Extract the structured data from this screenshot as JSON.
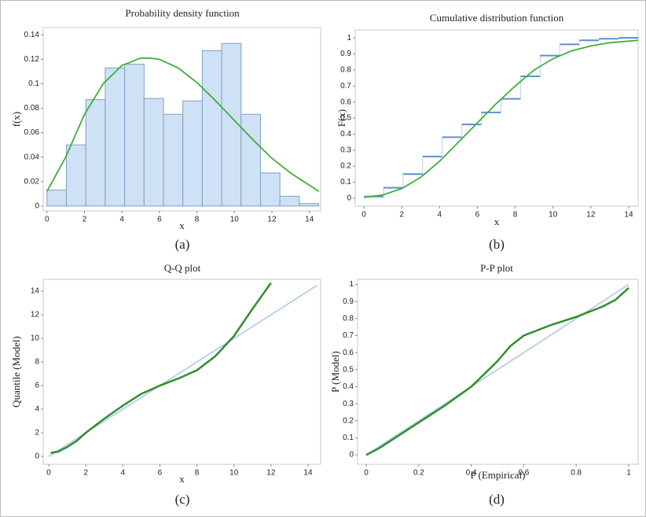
{
  "chart_data": [
    {
      "type": "histogram",
      "title": "Probability density function",
      "x_label": "x",
      "y_label": "f(x)",
      "caption": "(a)",
      "xlim": [
        -0.2,
        14.6
      ],
      "ylim": [
        -0.004,
        0.146
      ],
      "xticks": [
        0,
        2,
        4,
        6,
        8,
        10,
        12,
        14
      ],
      "yticks": [
        0,
        0.02,
        0.04,
        0.06,
        0.08,
        0.1,
        0.12,
        0.14
      ],
      "series": [
        {
          "style": "bars",
          "color": "#cfe2f5",
          "edge_color": "#7f9fc2",
          "bins": [
            0,
            1.036,
            2.071,
            3.107,
            4.143,
            5.179,
            6.214,
            7.25,
            8.286,
            9.321,
            10.357,
            11.393,
            12.429,
            13.464,
            14.5
          ],
          "values": [
            0.013,
            0.05,
            0.087,
            0.113,
            0.116,
            0.088,
            0.075,
            0.086,
            0.127,
            0.133,
            0.075,
            0.027,
            0.008,
            0.002
          ]
        },
        {
          "style": "line",
          "color": "#3fae3f",
          "x": [
            0,
            1,
            2,
            3,
            4,
            5,
            5.5,
            6,
            7,
            8,
            9,
            10,
            11,
            12,
            13,
            14,
            14.5
          ],
          "values": [
            0.012,
            0.04,
            0.075,
            0.1,
            0.115,
            0.121,
            0.121,
            0.12,
            0.113,
            0.101,
            0.086,
            0.07,
            0.054,
            0.039,
            0.027,
            0.017,
            0.012
          ]
        }
      ]
    },
    {
      "type": "step",
      "title": "Cumulative distribution function",
      "x_label": "x",
      "y_label": "F(x)",
      "caption": "(b)",
      "xlim": [
        -0.46,
        14.5
      ],
      "ylim": [
        -0.05,
        1.05
      ],
      "xticks": [
        0,
        2,
        4,
        6,
        8,
        10,
        12,
        14
      ],
      "yticks": [
        0,
        0.1,
        0.2,
        0.3,
        0.4,
        0.5,
        0.6,
        0.7,
        0.8,
        0.9,
        1
      ],
      "series": [
        {
          "style": "steps",
          "color": "#5b8fd6",
          "riser_color": "#b9cfee",
          "bins": [
            0,
            1.036,
            2.071,
            3.107,
            4.143,
            5.179,
            6.214,
            7.25,
            8.286,
            9.321,
            10.357,
            11.393,
            12.429,
            13.464,
            14.5
          ],
          "values": [
            0.01,
            0.065,
            0.15,
            0.26,
            0.38,
            0.46,
            0.535,
            0.62,
            0.76,
            0.89,
            0.96,
            0.985,
            0.995,
            1
          ]
        },
        {
          "style": "line",
          "color": "#3fae3f",
          "x": [
            0,
            1,
            2,
            3,
            4,
            5,
            6,
            7,
            8,
            9,
            10,
            11,
            12,
            13,
            14,
            14.5
          ],
          "values": [
            0.005,
            0.02,
            0.06,
            0.13,
            0.23,
            0.35,
            0.47,
            0.59,
            0.7,
            0.8,
            0.87,
            0.92,
            0.95,
            0.97,
            0.98,
            0.985
          ]
        }
      ]
    },
    {
      "type": "line",
      "title": "Q-Q plot",
      "x_label": "x",
      "y_label": "Quantile (Model)",
      "caption": "(c)",
      "xlim": [
        -0.3,
        14.68
      ],
      "ylim": [
        -0.67,
        15
      ],
      "xticks": [
        0,
        2,
        4,
        6,
        8,
        10,
        12,
        14
      ],
      "yticks": [
        0,
        2,
        4,
        6,
        8,
        10,
        12,
        14
      ],
      "series": [
        {
          "style": "line",
          "color": "#b8cdeb",
          "x": [
            0,
            14.5
          ],
          "values": [
            0,
            14.5
          ]
        },
        {
          "style": "line",
          "color": "#2f8f2f",
          "x": [
            0.1,
            0.5,
            1,
            1.5,
            2,
            3,
            4,
            5,
            6,
            7,
            8,
            9,
            10,
            11,
            12
          ],
          "values": [
            0.3,
            0.4,
            0.8,
            1.3,
            2,
            3.2,
            4.3,
            5.3,
            6,
            6.6,
            7.3,
            8.5,
            10.2,
            12.5,
            14.7
          ]
        }
      ]
    },
    {
      "type": "line",
      "title": "P-P plot",
      "x_label": "P (Empirical)",
      "y_label": "P (Model)",
      "caption": "(d)",
      "xlim": [
        -0.033,
        1.036
      ],
      "ylim": [
        -0.055,
        1.03
      ],
      "xticks": [
        0,
        0.2,
        0.4,
        0.6,
        0.8,
        1
      ],
      "yticks": [
        0,
        0.1,
        0.2,
        0.3,
        0.4,
        0.5,
        0.6,
        0.7,
        0.8,
        0.9,
        1
      ],
      "series": [
        {
          "style": "line",
          "color": "#b8cdeb",
          "x": [
            0,
            1
          ],
          "values": [
            0,
            1
          ]
        },
        {
          "style": "line",
          "color": "#2f8f2f",
          "x": [
            0,
            0.05,
            0.1,
            0.2,
            0.3,
            0.4,
            0.5,
            0.55,
            0.6,
            0.7,
            0.8,
            0.9,
            0.95,
            1
          ],
          "values": [
            0,
            0.04,
            0.09,
            0.19,
            0.29,
            0.4,
            0.55,
            0.64,
            0.7,
            0.76,
            0.81,
            0.87,
            0.91,
            0.98
          ]
        }
      ]
    }
  ]
}
